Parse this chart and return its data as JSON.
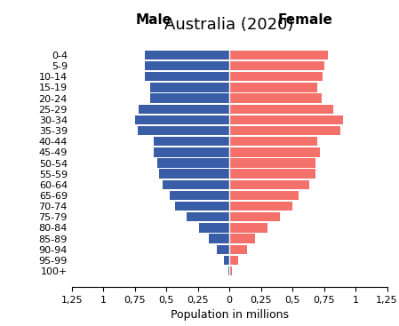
{
  "title": "Australia (2020)",
  "xlabel": "Population in millions",
  "age_groups": [
    "100+",
    "95-99",
    "90-94",
    "85-89",
    "80-84",
    "75-79",
    "70-74",
    "65-69",
    "60-64",
    "55-59",
    "50-54",
    "45-49",
    "40-44",
    "35-39",
    "30-34",
    "25-29",
    "20-24",
    "15-19",
    "10-14",
    "5-9",
    "0-4"
  ],
  "male": [
    0.01,
    0.04,
    0.1,
    0.16,
    0.24,
    0.34,
    0.43,
    0.47,
    0.53,
    0.56,
    0.57,
    0.6,
    0.6,
    0.73,
    0.75,
    0.72,
    0.63,
    0.63,
    0.67,
    0.67,
    0.67
  ],
  "female": [
    0.02,
    0.07,
    0.14,
    0.2,
    0.3,
    0.4,
    0.5,
    0.55,
    0.63,
    0.68,
    0.68,
    0.72,
    0.7,
    0.88,
    0.9,
    0.82,
    0.73,
    0.7,
    0.74,
    0.75,
    0.78
  ],
  "male_color": "#3A5DA8",
  "female_color": "#F4706A",
  "xlim": 1.25,
  "male_label": "Male",
  "female_label": "Female",
  "label_fontsize": 11,
  "title_fontsize": 13,
  "tick_fontsize": 8,
  "xlabel_fontsize": 9
}
